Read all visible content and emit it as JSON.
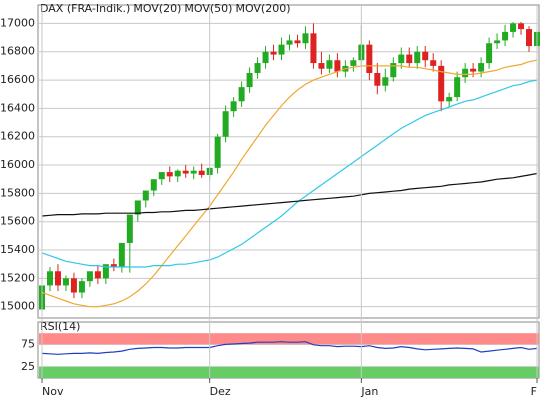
{
  "chart_data": [
    {
      "type": "candlestick",
      "ylim": [
        14920,
        17130
      ],
      "yticks": [
        15000,
        15200,
        15400,
        15600,
        15800,
        16000,
        16200,
        16400,
        16600,
        16800,
        17000
      ],
      "grid": true,
      "up_color": "#22aa22",
      "down_color": "#dd2222",
      "candles": {
        "name": "DAX (FRA-Indik.)",
        "color": "#dd3333",
        "open": [
          14980,
          15150,
          15250,
          15150,
          15200,
          15100,
          15180,
          15250,
          15200,
          15300,
          15280,
          15450,
          15650,
          15750,
          15820,
          15900,
          15950,
          15920,
          15960,
          15940,
          15960,
          15930,
          15980,
          16200,
          16380,
          16450,
          16550,
          16650,
          16720,
          16800,
          16780,
          16850,
          16880,
          16860,
          16930,
          16720,
          16680,
          16740,
          16660,
          16700,
          16740,
          16850,
          16650,
          16560,
          16620,
          16720,
          16780,
          16720,
          16800,
          16740,
          16700,
          16450,
          16480,
          16620,
          16680,
          16660,
          16720,
          16860,
          16880,
          16940,
          17000,
          16960,
          16840
        ],
        "high": [
          15200,
          15280,
          15300,
          15220,
          15240,
          15200,
          15230,
          15290,
          15260,
          15340,
          15320,
          15500,
          15700,
          15800,
          15870,
          15950,
          15990,
          15970,
          16000,
          15990,
          16010,
          15980,
          16220,
          16420,
          16480,
          16590,
          16690,
          16760,
          16840,
          16850,
          16900,
          16920,
          16920,
          16980,
          17000,
          16800,
          16780,
          16790,
          16740,
          16760,
          16990,
          16880,
          16720,
          16680,
          16760,
          16830,
          16830,
          16840,
          16840,
          16790,
          16740,
          16510,
          16660,
          16720,
          16720,
          16760,
          16900,
          16930,
          16990,
          17010,
          17010,
          16980,
          16980
        ],
        "low": [
          14950,
          15110,
          15110,
          15110,
          15060,
          15060,
          15140,
          15160,
          15160,
          15250,
          15240,
          15240,
          15600,
          15700,
          15780,
          15860,
          15880,
          15880,
          15910,
          15900,
          15910,
          15890,
          15940,
          16160,
          16340,
          16410,
          16510,
          16610,
          16680,
          16740,
          16740,
          16810,
          16830,
          16820,
          16680,
          16640,
          16650,
          16620,
          16620,
          16660,
          16700,
          16600,
          16500,
          16520,
          16590,
          16680,
          16690,
          16680,
          16690,
          16660,
          16380,
          16410,
          16450,
          16580,
          16620,
          16620,
          16680,
          16820,
          16840,
          16900,
          16920,
          16800,
          16800
        ],
        "close": [
          15150,
          15250,
          15150,
          15200,
          15100,
          15180,
          15250,
          15200,
          15300,
          15280,
          15450,
          15650,
          15750,
          15820,
          15900,
          15950,
          15920,
          15960,
          15940,
          15960,
          15930,
          15980,
          16200,
          16380,
          16450,
          16550,
          16650,
          16720,
          16800,
          16780,
          16850,
          16880,
          16860,
          16930,
          16720,
          16680,
          16740,
          16660,
          16700,
          16740,
          16850,
          16650,
          16560,
          16620,
          16720,
          16780,
          16720,
          16800,
          16740,
          16700,
          16450,
          16480,
          16620,
          16680,
          16660,
          16720,
          16860,
          16880,
          16940,
          17000,
          16960,
          16840,
          16940
        ]
      },
      "series": [
        {
          "name": "MOV(20)",
          "color": "#f0a830",
          "values": [
            15100,
            15080,
            15060,
            15040,
            15020,
            15010,
            15000,
            15000,
            15010,
            15020,
            15040,
            15070,
            15110,
            15160,
            15220,
            15290,
            15360,
            15430,
            15500,
            15570,
            15640,
            15710,
            15790,
            15870,
            15950,
            16040,
            16120,
            16200,
            16280,
            16350,
            16420,
            16480,
            16530,
            16570,
            16600,
            16620,
            16640,
            16660,
            16680,
            16690,
            16700,
            16700,
            16700,
            16700,
            16700,
            16700,
            16690,
            16690,
            16680,
            16670,
            16660,
            16650,
            16640,
            16640,
            16640,
            16650,
            16660,
            16670,
            16690,
            16700,
            16710,
            16730,
            16740
          ]
        },
        {
          "name": "MOV(50)",
          "color": "#30c8e8",
          "values": [
            15380,
            15360,
            15340,
            15320,
            15310,
            15300,
            15290,
            15290,
            15280,
            15280,
            15280,
            15280,
            15280,
            15280,
            15290,
            15290,
            15290,
            15300,
            15300,
            15310,
            15320,
            15330,
            15350,
            15380,
            15410,
            15440,
            15480,
            15520,
            15560,
            15600,
            15640,
            15690,
            15740,
            15780,
            15820,
            15860,
            15900,
            15940,
            15980,
            16020,
            16060,
            16100,
            16140,
            16180,
            16220,
            16260,
            16290,
            16320,
            16350,
            16370,
            16390,
            16410,
            16430,
            16450,
            16460,
            16480,
            16500,
            16520,
            16540,
            16560,
            16570,
            16590,
            16600
          ]
        },
        {
          "name": "MOV(200)",
          "color": "#111111",
          "values": [
            15640,
            15645,
            15650,
            15650,
            15650,
            15655,
            15655,
            15655,
            15660,
            15660,
            15660,
            15660,
            15660,
            15665,
            15665,
            15670,
            15670,
            15675,
            15680,
            15680,
            15685,
            15690,
            15695,
            15700,
            15705,
            15710,
            15715,
            15720,
            15725,
            15730,
            15735,
            15740,
            15745,
            15750,
            15755,
            15760,
            15765,
            15770,
            15775,
            15780,
            15790,
            15800,
            15805,
            15810,
            15815,
            15820,
            15830,
            15835,
            15840,
            15845,
            15850,
            15860,
            15865,
            15870,
            15875,
            15880,
            15890,
            15900,
            15905,
            15910,
            15920,
            15930,
            15940
          ]
        }
      ]
    },
    {
      "type": "line",
      "title": "RSI(14)",
      "ylim": [
        0,
        125
      ],
      "yticks": [
        25,
        75
      ],
      "bands": [
        {
          "from": 75,
          "to": 100,
          "color": "#ff8a8a"
        },
        {
          "from": 0,
          "to": 25,
          "color": "#66cc66"
        }
      ],
      "categories": [
        "Nov",
        null,
        null,
        null,
        null,
        null,
        null,
        null,
        null,
        null,
        null,
        null,
        null,
        null,
        null,
        null,
        null,
        null,
        null,
        null,
        null,
        "Dez",
        null,
        null,
        null,
        null,
        null,
        null,
        null,
        null,
        null,
        null,
        null,
        null,
        null,
        null,
        null,
        null,
        null,
        null,
        "Jan",
        null,
        null,
        null,
        null,
        null,
        null,
        null,
        null,
        null,
        null,
        null,
        null,
        null,
        null,
        null,
        null,
        null,
        null,
        null,
        null,
        null,
        "F"
      ],
      "series": [
        {
          "name": "RSI(14)",
          "color": "#2040c0",
          "values": [
            55,
            54,
            53,
            54,
            55,
            55,
            56,
            55,
            57,
            58,
            60,
            64,
            66,
            67,
            68,
            68,
            67,
            67,
            68,
            68,
            68,
            68,
            72,
            75,
            76,
            77,
            78,
            80,
            80,
            80,
            81,
            80,
            80,
            81,
            74,
            72,
            72,
            70,
            71,
            71,
            70,
            72,
            68,
            66,
            67,
            70,
            68,
            65,
            63,
            64,
            65,
            66,
            67,
            66,
            65,
            58,
            60,
            62,
            64,
            66,
            68,
            64,
            66
          ]
        }
      ]
    }
  ]
}
